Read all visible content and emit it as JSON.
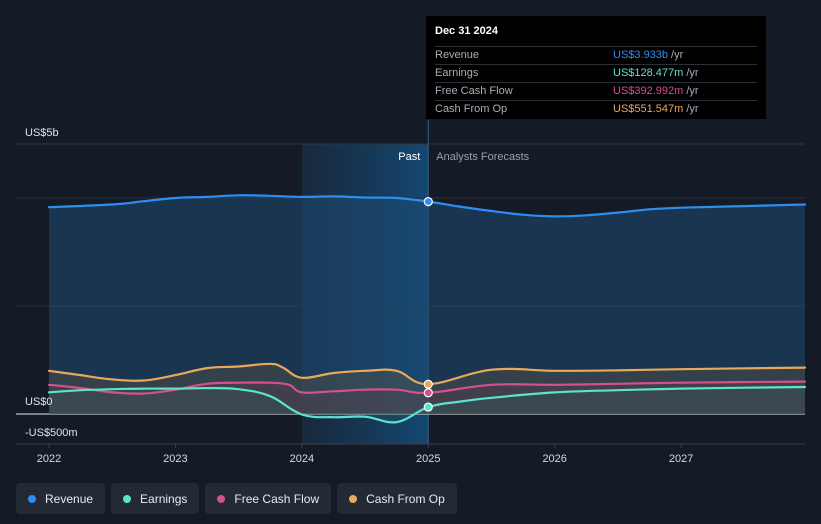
{
  "chart_data": {
    "type": "line",
    "x_unit": "year",
    "xlim": [
      2021.78,
      2027.98
    ],
    "ylim": [
      -500,
      5000
    ],
    "y_ticks": [
      -500,
      0,
      5000
    ],
    "y_tick_labels": [
      "-US$500m",
      "US$0",
      "US$5b"
    ],
    "x_ticks": [
      2022,
      2023,
      2024,
      2025,
      2026,
      2027
    ],
    "x_tick_labels": [
      "2022",
      "2023",
      "2024",
      "2025",
      "2026",
      "2027"
    ],
    "grid": true,
    "past_label": "Past",
    "forecast_label": "Analysts Forecasts",
    "past_end": 2025,
    "highlight_start": 2024,
    "series": [
      {
        "name": "Revenue",
        "color": "#2d8ef0",
        "x": [
          2022.0,
          2022.5,
          2022.75,
          2023.0,
          2023.25,
          2023.5,
          2023.75,
          2024.0,
          2024.25,
          2024.5,
          2024.75,
          2025.0,
          2025.25,
          2025.5,
          2025.75,
          2026.0,
          2026.25,
          2026.5,
          2026.75,
          2027.0,
          2027.5,
          2027.98
        ],
        "values": [
          3830,
          3880,
          3940,
          4000,
          4020,
          4050,
          4040,
          4020,
          4030,
          4010,
          4000,
          3933,
          3840,
          3760,
          3690,
          3660,
          3680,
          3730,
          3790,
          3820,
          3850,
          3880
        ]
      },
      {
        "name": "Earnings",
        "color": "#5ce3d0",
        "x": [
          2022.0,
          2022.25,
          2022.5,
          2022.75,
          2023.0,
          2023.25,
          2023.5,
          2023.75,
          2024.0,
          2024.25,
          2024.5,
          2024.75,
          2025.0,
          2025.25,
          2025.5,
          2026.0,
          2026.5,
          2027.0,
          2027.98
        ],
        "values": [
          400,
          440,
          460,
          470,
          470,
          480,
          460,
          330,
          -10,
          -60,
          -50,
          -150,
          128.477,
          230,
          300,
          400,
          440,
          470,
          500
        ]
      },
      {
        "name": "Free Cash Flow",
        "color": "#d4508f",
        "x": [
          2022.0,
          2022.25,
          2022.5,
          2022.75,
          2023.0,
          2023.25,
          2023.5,
          2023.75,
          2023.9,
          2024.0,
          2024.25,
          2024.5,
          2024.75,
          2025.0,
          2025.5,
          2026.0,
          2026.5,
          2027.0,
          2027.98
        ],
        "values": [
          540,
          480,
          400,
          380,
          450,
          560,
          580,
          580,
          540,
          400,
          420,
          450,
          450,
          392.992,
          540,
          540,
          560,
          580,
          600
        ]
      },
      {
        "name": "Cash From Op",
        "color": "#e9a95a",
        "x": [
          2022.0,
          2022.25,
          2022.5,
          2022.75,
          2023.0,
          2023.25,
          2023.5,
          2023.75,
          2023.85,
          2024.0,
          2024.25,
          2024.5,
          2024.75,
          2025.0,
          2025.5,
          2026.0,
          2026.5,
          2027.0,
          2027.98
        ],
        "values": [
          800,
          720,
          640,
          620,
          720,
          850,
          880,
          930,
          860,
          670,
          760,
          800,
          800,
          551.547,
          820,
          800,
          810,
          830,
          860
        ]
      }
    ]
  },
  "tooltip": {
    "date": "Dec 31 2024",
    "rows": [
      {
        "name": "Revenue",
        "value": "US$3.933b",
        "unit": "/yr",
        "color": "#2d8ef0"
      },
      {
        "name": "Earnings",
        "value": "US$128.477m",
        "unit": "/yr",
        "color": "#5ce3d0"
      },
      {
        "name": "Free Cash Flow",
        "value": "US$392.992m",
        "unit": "/yr",
        "color": "#d4508f"
      },
      {
        "name": "Cash From Op",
        "value": "US$551.547m",
        "unit": "/yr",
        "color": "#e9a95a"
      }
    ]
  },
  "legend": [
    {
      "label": "Revenue",
      "color": "#2d8ef0",
      "icon": "dot-icon"
    },
    {
      "label": "Earnings",
      "color": "#5ce3d0",
      "icon": "dot-icon"
    },
    {
      "label": "Free Cash Flow",
      "color": "#d4508f",
      "icon": "dot-icon"
    },
    {
      "label": "Cash From Op",
      "color": "#e9a95a",
      "icon": "dot-icon"
    }
  ]
}
